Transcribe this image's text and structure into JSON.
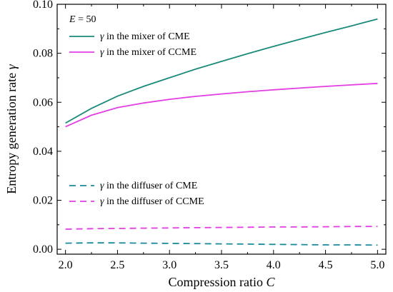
{
  "chart_data": {
    "type": "line",
    "xlabel": "Compression ratio C",
    "ylabel": "Entropy generation rate γ",
    "xlim": [
      1.92,
      5.08
    ],
    "ylim": [
      -0.002,
      0.1
    ],
    "xticks": [
      "2.0",
      "2.5",
      "3.0",
      "3.5",
      "4.0",
      "4.5",
      "5.0"
    ],
    "yticks": [
      "0.00",
      "0.02",
      "0.04",
      "0.06",
      "0.08",
      "0.10"
    ],
    "annotation": "E = 50",
    "annotation_parts": {
      "var": "E",
      "rest": " = 50"
    },
    "grid": false,
    "x": [
      2.0,
      2.25,
      2.5,
      2.75,
      3.0,
      3.25,
      3.5,
      3.75,
      4.0,
      4.25,
      4.5,
      4.75,
      5.0
    ],
    "series": [
      {
        "name": "γ in the mixer of CME",
        "color": "#1a8a7a",
        "dash": "solid",
        "values": [
          0.0515,
          0.0575,
          0.0625,
          0.0665,
          0.07,
          0.0735,
          0.0767,
          0.0798,
          0.0828,
          0.0857,
          0.0885,
          0.0912,
          0.094
        ]
      },
      {
        "name": "γ in the mixer of CCME",
        "color": "#e23ee2",
        "dash": "solid",
        "values": [
          0.05,
          0.0547,
          0.0578,
          0.0597,
          0.0612,
          0.0624,
          0.0634,
          0.0643,
          0.0651,
          0.0658,
          0.0665,
          0.0671,
          0.0677
        ]
      },
      {
        "name": "γ in the diffuser of CME",
        "color": "#1a8a9a",
        "dash": "dashed",
        "values": [
          0.0025,
          0.0026,
          0.0026,
          0.0025,
          0.0024,
          0.0023,
          0.0022,
          0.0021,
          0.002,
          0.0019,
          0.0018,
          0.0018,
          0.0017
        ]
      },
      {
        "name": "γ in the diffuser of CCME",
        "color": "#e23ee2",
        "dash": "dashed",
        "values": [
          0.0082,
          0.0084,
          0.0085,
          0.0086,
          0.0087,
          0.0088,
          0.0089,
          0.009,
          0.0091,
          0.0091,
          0.0092,
          0.0093,
          0.0093
        ]
      }
    ],
    "legend_top": [
      {
        "sym": "γ",
        "rest": " in the mixer of CME",
        "series": 0
      },
      {
        "sym": "γ",
        "rest": " in the mixer of CCME",
        "series": 1
      }
    ],
    "legend_bottom": [
      {
        "sym": "γ",
        "rest": " in the diffuser of CME",
        "series": 2
      },
      {
        "sym": "γ",
        "rest": " in the diffuser of CCME",
        "series": 3
      }
    ],
    "xlabel_parts": {
      "text": "Compression ratio ",
      "var": "C"
    },
    "ylabel_parts": {
      "text": "Entropy generation rate ",
      "var": "γ"
    }
  }
}
